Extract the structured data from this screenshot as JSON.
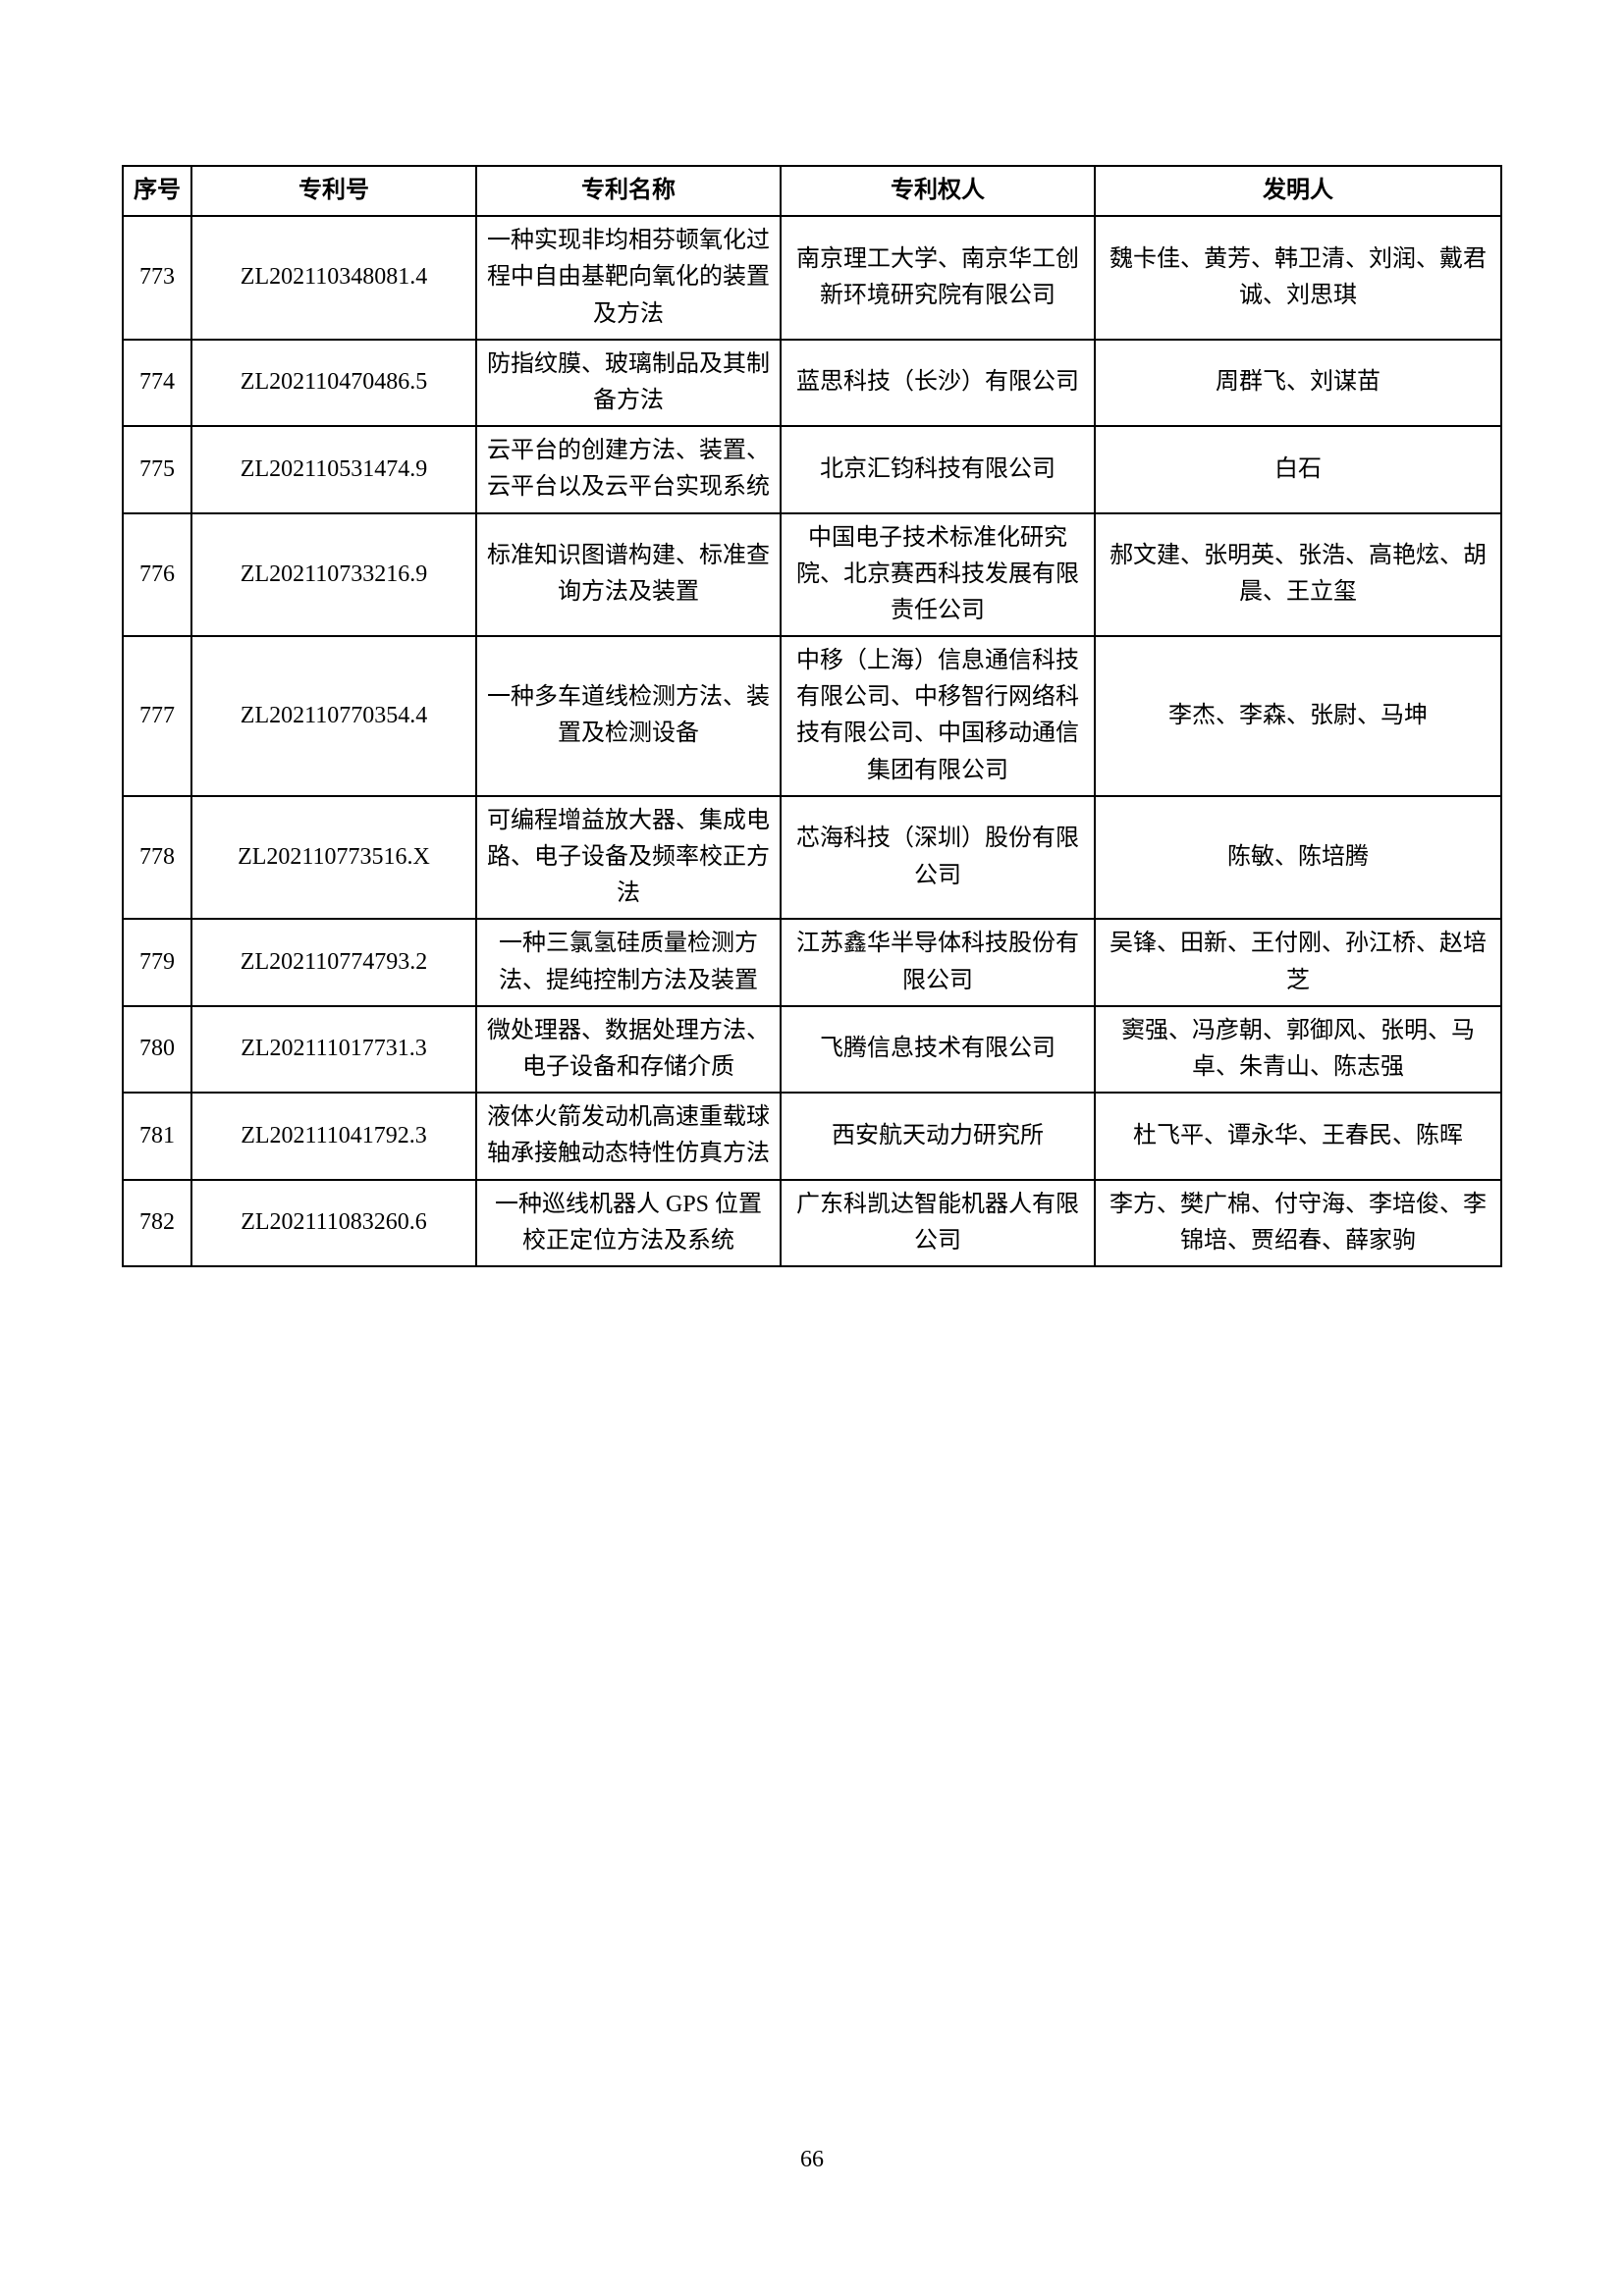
{
  "table": {
    "headers": {
      "seq": "序号",
      "patent_no": "专利号",
      "patent_name": "专利名称",
      "owner": "专利权人",
      "inventor": "发明人"
    },
    "rows": [
      {
        "seq": "773",
        "patent_no": "ZL202110348081.4",
        "patent_name": "一种实现非均相芬顿氧化过程中自由基靶向氧化的装置及方法",
        "owner": "南京理工大学、南京华工创新环境研究院有限公司",
        "inventor": "魏卡佳、黄芳、韩卫清、刘润、戴君诚、刘思琪"
      },
      {
        "seq": "774",
        "patent_no": "ZL202110470486.5",
        "patent_name": "防指纹膜、玻璃制品及其制备方法",
        "owner": "蓝思科技（长沙）有限公司",
        "inventor": "周群飞、刘谋苗"
      },
      {
        "seq": "775",
        "patent_no": "ZL202110531474.9",
        "patent_name": "云平台的创建方法、装置、云平台以及云平台实现系统",
        "owner": "北京汇钧科技有限公司",
        "inventor": "白石"
      },
      {
        "seq": "776",
        "patent_no": "ZL202110733216.9",
        "patent_name": "标准知识图谱构建、标准查询方法及装置",
        "owner": "中国电子技术标准化研究院、北京赛西科技发展有限责任公司",
        "inventor": "郝文建、张明英、张浩、高艳炫、胡晨、王立玺"
      },
      {
        "seq": "777",
        "patent_no": "ZL202110770354.4",
        "patent_name": "一种多车道线检测方法、装置及检测设备",
        "owner": "中移（上海）信息通信科技有限公司、中移智行网络科技有限公司、中国移动通信集团有限公司",
        "inventor": "李杰、李森、张尉、马坤"
      },
      {
        "seq": "778",
        "patent_no": "ZL202110773516.X",
        "patent_name": "可编程增益放大器、集成电路、电子设备及频率校正方法",
        "owner": "芯海科技（深圳）股份有限公司",
        "inventor": "陈敏、陈培腾"
      },
      {
        "seq": "779",
        "patent_no": "ZL202110774793.2",
        "patent_name": "一种三氯氢硅质量检测方法、提纯控制方法及装置",
        "owner": "江苏鑫华半导体科技股份有限公司",
        "inventor": "吴锋、田新、王付刚、孙江桥、赵培芝"
      },
      {
        "seq": "780",
        "patent_no": "ZL202111017731.3",
        "patent_name": "微处理器、数据处理方法、电子设备和存储介质",
        "owner": "飞腾信息技术有限公司",
        "inventor": "窦强、冯彦朝、郭御风、张明、马卓、朱青山、陈志强"
      },
      {
        "seq": "781",
        "patent_no": "ZL202111041792.3",
        "patent_name": "液体火箭发动机高速重载球轴承接触动态特性仿真方法",
        "owner": "西安航天动力研究所",
        "inventor": "杜飞平、谭永华、王春民、陈晖"
      },
      {
        "seq": "782",
        "patent_no": "ZL202111083260.6",
        "patent_name": "一种巡线机器人 GPS 位置校正定位方法及系统",
        "owner": "广东科凯达智能机器人有限公司",
        "inventor": "李方、樊广棉、付守海、李培俊、李锦培、贾绍春、薛家驹"
      }
    ]
  },
  "page_number": "66",
  "layout": {
    "col_widths": {
      "seq": 70,
      "num": 290,
      "name": 310,
      "owner": 320
    },
    "font_size": 24,
    "border_color": "#000000",
    "background_color": "#ffffff"
  }
}
